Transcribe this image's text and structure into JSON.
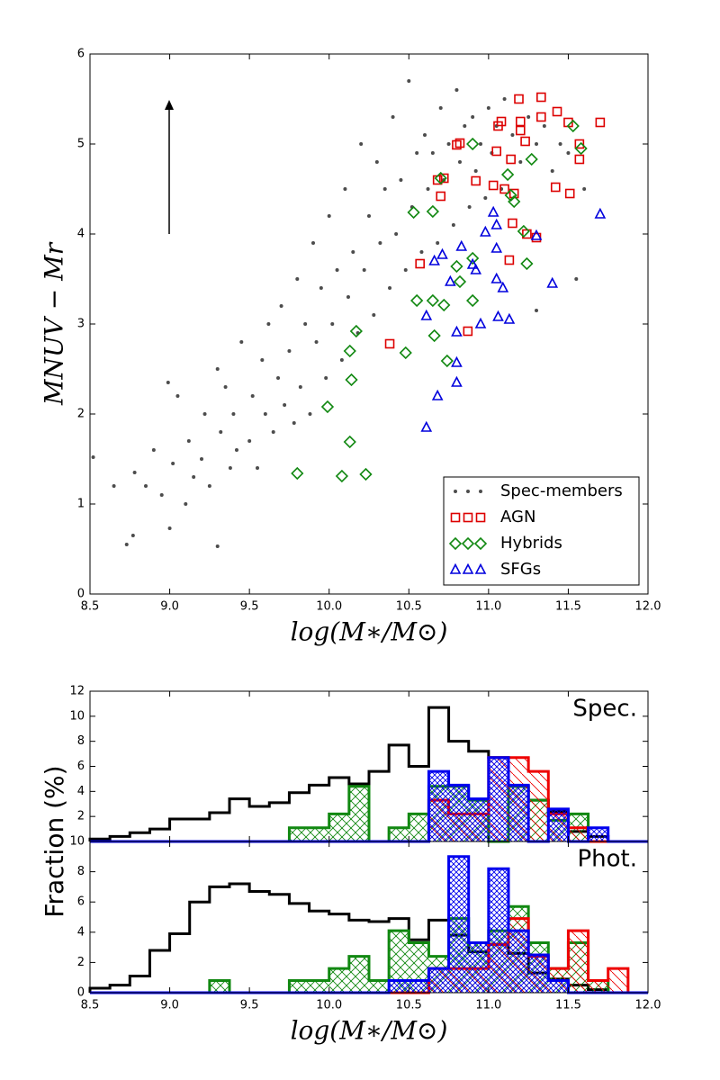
{
  "chart_data": [
    {
      "type": "scatter",
      "xlabel": "log(M∗/M⊙)",
      "ylabel": "MNUV − Mr",
      "xlim": [
        8.5,
        12.0
      ],
      "ylim": [
        0,
        6
      ],
      "xticks": [
        8.5,
        {
          "value": 9,
          "label": "9.0"
        },
        9.5,
        {
          "value": 10,
          "label": "10.0"
        },
        10.5,
        {
          "value": 11,
          "label": "11.0"
        },
        11.5,
        {
          "value": 12,
          "label": "12.0"
        }
      ],
      "yticks": [
        0,
        1,
        2,
        3,
        4,
        5,
        6
      ],
      "legend": "lower right",
      "series": [
        {
          "name": "Spec-members",
          "color": "#000000",
          "marker": "o",
          "x": [
            8.52,
            8.65,
            8.73,
            8.78,
            8.85,
            8.9,
            8.95,
            9.0,
            9.02,
            9.05,
            9.1,
            9.12,
            9.15,
            9.2,
            9.22,
            9.25,
            9.3,
            9.32,
            9.35,
            9.38,
            9.4,
            9.42,
            9.45,
            9.5,
            9.52,
            9.55,
            9.58,
            9.6,
            9.62,
            9.65,
            9.68,
            9.7,
            9.72,
            9.75,
            9.78,
            9.8,
            9.82,
            9.85,
            9.88,
            9.9,
            9.92,
            9.95,
            9.98,
            10.0,
            10.02,
            10.05,
            10.08,
            10.1,
            10.12,
            10.15,
            10.18,
            10.2,
            10.22,
            10.25,
            10.28,
            10.3,
            10.32,
            10.35,
            10.38,
            10.4,
            10.42,
            10.45,
            10.48,
            10.5,
            10.52,
            10.55,
            10.58,
            10.6,
            10.62,
            10.65,
            10.68,
            10.7,
            10.72,
            10.75,
            10.78,
            10.8,
            10.82,
            10.85,
            10.88,
            10.9,
            10.92,
            10.95,
            10.98,
            11.0,
            11.02,
            11.05,
            11.08,
            11.1,
            11.15,
            11.2,
            11.25,
            11.3,
            11.35,
            11.4,
            11.45,
            11.5,
            11.55,
            11.6,
            11.3,
            9.3,
            8.99,
            8.77
          ],
          "values": [
            1.52,
            1.2,
            0.55,
            1.35,
            1.2,
            1.6,
            1.1,
            0.73,
            1.45,
            2.2,
            1.0,
            1.7,
            1.3,
            1.5,
            2.0,
            1.2,
            2.5,
            1.8,
            2.3,
            1.4,
            2.0,
            1.6,
            2.8,
            1.7,
            2.2,
            1.4,
            2.6,
            2.0,
            3.0,
            1.8,
            2.4,
            3.2,
            2.1,
            2.7,
            1.9,
            3.5,
            2.3,
            3.0,
            2.0,
            3.9,
            2.8,
            3.4,
            2.4,
            4.2,
            3.0,
            3.6,
            2.6,
            4.5,
            3.3,
            3.8,
            2.9,
            5.0,
            3.6,
            4.2,
            3.1,
            4.8,
            3.9,
            4.5,
            3.4,
            5.3,
            4.0,
            4.6,
            3.6,
            5.7,
            4.3,
            4.9,
            3.8,
            5.1,
            4.5,
            4.9,
            3.9,
            5.4,
            4.6,
            5.0,
            4.1,
            5.6,
            4.8,
            5.2,
            4.3,
            5.3,
            4.7,
            5.0,
            4.4,
            5.4,
            4.9,
            5.2,
            4.5,
            5.5,
            5.1,
            4.8,
            5.3,
            5.0,
            5.2,
            4.7,
            5.0,
            4.9,
            3.5,
            4.5,
            3.15,
            0.53,
            2.35,
            0.65
          ]
        },
        {
          "name": "AGN",
          "color": "#dd0000",
          "marker": "s",
          "x": [
            10.38,
            10.57,
            10.68,
            10.7,
            10.72,
            10.8,
            10.82,
            10.87,
            10.92,
            11.03,
            11.05,
            11.06,
            11.08,
            11.1,
            11.13,
            11.14,
            11.15,
            11.16,
            11.19,
            11.2,
            11.2,
            11.23,
            11.24,
            11.3,
            11.33,
            11.33,
            11.42,
            11.43,
            11.5,
            11.51,
            11.57,
            11.57,
            11.7
          ],
          "values": [
            2.78,
            3.67,
            4.6,
            4.42,
            4.62,
            4.99,
            5.01,
            2.92,
            4.59,
            4.54,
            4.92,
            5.2,
            5.25,
            4.5,
            3.71,
            4.83,
            4.12,
            4.45,
            5.5,
            5.25,
            5.15,
            5.03,
            4.0,
            3.96,
            5.3,
            5.52,
            4.52,
            5.36,
            5.24,
            4.45,
            5.0,
            4.83,
            5.24
          ]
        },
        {
          "name": "Hybrids",
          "color": "#118811",
          "marker": "D",
          "x": [
            9.8,
            9.99,
            10.08,
            10.13,
            10.13,
            10.14,
            10.17,
            10.23,
            10.48,
            10.53,
            10.55,
            10.65,
            10.65,
            10.66,
            10.72,
            10.74,
            10.8,
            10.82,
            10.9,
            10.9,
            10.9,
            11.12,
            11.14,
            11.16,
            11.22,
            11.24,
            11.27,
            11.53,
            11.58,
            10.7
          ],
          "values": [
            1.34,
            2.08,
            1.31,
            1.69,
            2.7,
            2.38,
            2.92,
            1.33,
            2.68,
            4.24,
            3.26,
            3.26,
            4.25,
            2.87,
            3.21,
            2.59,
            3.64,
            3.47,
            3.73,
            5.0,
            3.26,
            4.66,
            4.43,
            4.36,
            4.03,
            3.67,
            4.83,
            5.2,
            4.95,
            4.62
          ]
        },
        {
          "name": "SFGs",
          "color": "#0000dd",
          "marker": "^",
          "x": [
            10.61,
            10.61,
            10.66,
            10.68,
            10.71,
            10.76,
            10.8,
            10.8,
            10.8,
            10.83,
            10.9,
            10.92,
            10.95,
            10.98,
            11.03,
            11.05,
            11.05,
            11.05,
            11.06,
            11.09,
            11.13,
            11.3,
            11.4,
            11.7
          ],
          "values": [
            1.85,
            3.09,
            3.7,
            2.2,
            3.77,
            3.47,
            2.57,
            2.35,
            2.91,
            3.86,
            3.66,
            3.6,
            3.0,
            4.02,
            4.24,
            3.84,
            4.1,
            3.5,
            3.08,
            3.4,
            3.05,
            3.98,
            3.45,
            4.22
          ]
        }
      ]
    },
    {
      "type": "histogram",
      "annotation": "Spec.",
      "ylabel": "Fraction (%)",
      "xlim": [
        8.5,
        12.0
      ],
      "ylim": [
        0,
        12
      ],
      "xticks": [
        8.5,
        9,
        9.5,
        10,
        10.5,
        11,
        11.5,
        12
      ],
      "yticks": [
        2,
        4,
        6,
        8,
        10,
        12
      ],
      "bins": [
        8.5,
        8.625,
        8.75,
        8.875,
        9,
        9.125,
        9.25,
        9.375,
        9.5,
        9.625,
        9.75,
        9.875,
        10,
        10.125,
        10.25,
        10.375,
        10.5,
        10.625,
        10.75,
        10.875,
        11,
        11.125,
        11.25,
        11.375,
        11.5,
        11.625,
        11.75,
        11.875,
        12
      ],
      "series": [
        {
          "color": "#000000",
          "hatch": "none",
          "values": [
            0.2,
            0.4,
            0.7,
            1.0,
            1.8,
            1.8,
            2.3,
            3.4,
            2.8,
            3.1,
            3.9,
            4.5,
            5.1,
            4.6,
            5.6,
            7.7,
            6.0,
            10.7,
            8.0,
            7.2,
            6.7,
            4.4,
            3.3,
            2.4,
            0.8,
            0.4,
            0,
            0
          ]
        },
        {
          "color": "#118811",
          "hatch": "x",
          "values": [
            0,
            0,
            0,
            0,
            0,
            0,
            0,
            0,
            0,
            0,
            1.1,
            1.1,
            2.2,
            4.4,
            0,
            1.1,
            2.2,
            4.4,
            4.4,
            3.3,
            0,
            4.4,
            3.3,
            1.7,
            2.2,
            0,
            0,
            0
          ]
        },
        {
          "color": "#ee0000",
          "hatch": "\\",
          "values": [
            0,
            0,
            0,
            0,
            0,
            0,
            0,
            0,
            0,
            0,
            0,
            0,
            0,
            0,
            0,
            0,
            0,
            3.3,
            2.2,
            2.2,
            6.7,
            6.7,
            5.6,
            2.2,
            1.1,
            0,
            0,
            0
          ]
        },
        {
          "color": "#0000ee",
          "hatch": "xx",
          "values": [
            0,
            0,
            0,
            0,
            0,
            0,
            0,
            0,
            0,
            0,
            0,
            0,
            0,
            0,
            0,
            0,
            0,
            5.6,
            4.5,
            3.4,
            6.7,
            4.5,
            0,
            2.6,
            0,
            1.1,
            0,
            0
          ]
        }
      ]
    },
    {
      "type": "histogram",
      "annotation": "Phot.",
      "xlabel": "log(M∗/M⊙)",
      "xlim": [
        8.5,
        12.0
      ],
      "ylim": [
        0,
        10
      ],
      "xticks": [
        8.5,
        {
          "value": 9,
          "label": "9.0"
        },
        9.5,
        {
          "value": 10,
          "label": "10.0"
        },
        10.5,
        {
          "value": 11,
          "label": "11.0"
        },
        11.5,
        {
          "value": 12,
          "label": "12.0"
        }
      ],
      "yticks": [
        0,
        2,
        4,
        6,
        8,
        10
      ],
      "bins": [
        8.5,
        8.625,
        8.75,
        8.875,
        9,
        9.125,
        9.25,
        9.375,
        9.5,
        9.625,
        9.75,
        9.875,
        10,
        10.125,
        10.25,
        10.375,
        10.5,
        10.625,
        10.75,
        10.875,
        11,
        11.125,
        11.25,
        11.375,
        11.5,
        11.625,
        11.75,
        11.875,
        12
      ],
      "series": [
        {
          "color": "#000000",
          "hatch": "none",
          "values": [
            0.3,
            0.5,
            1.1,
            2.8,
            3.9,
            6.0,
            7.0,
            7.2,
            6.7,
            6.5,
            5.9,
            5.4,
            5.2,
            4.8,
            4.7,
            4.9,
            3.5,
            4.8,
            3.8,
            2.7,
            3.2,
            2.6,
            1.3,
            0.9,
            0.5,
            0.2,
            0,
            0
          ]
        },
        {
          "color": "#118811",
          "hatch": "x",
          "values": [
            0,
            0,
            0,
            0,
            0,
            0,
            0.8,
            0,
            0,
            0,
            0.8,
            0.8,
            1.6,
            2.4,
            0.8,
            4.1,
            3.3,
            2.4,
            4.9,
            3.3,
            4.1,
            5.7,
            3.3,
            1.6,
            3.3,
            0.8,
            0,
            0
          ]
        },
        {
          "color": "#ee0000",
          "hatch": "\\",
          "values": [
            0,
            0,
            0,
            0,
            0,
            0,
            0,
            0,
            0,
            0,
            0,
            0,
            0,
            0,
            0,
            0,
            0,
            1.6,
            1.6,
            1.6,
            3.2,
            4.9,
            2.4,
            1.6,
            4.1,
            0.8,
            1.6,
            0
          ]
        },
        {
          "color": "#0000ee",
          "hatch": "xx",
          "values": [
            0,
            0,
            0,
            0,
            0,
            0,
            0,
            0,
            0,
            0,
            0,
            0,
            0,
            0,
            0,
            0.8,
            0.8,
            1.6,
            9.0,
            3.3,
            8.2,
            4.1,
            2.5,
            0.8,
            0,
            0,
            0,
            0
          ]
        }
      ]
    }
  ]
}
